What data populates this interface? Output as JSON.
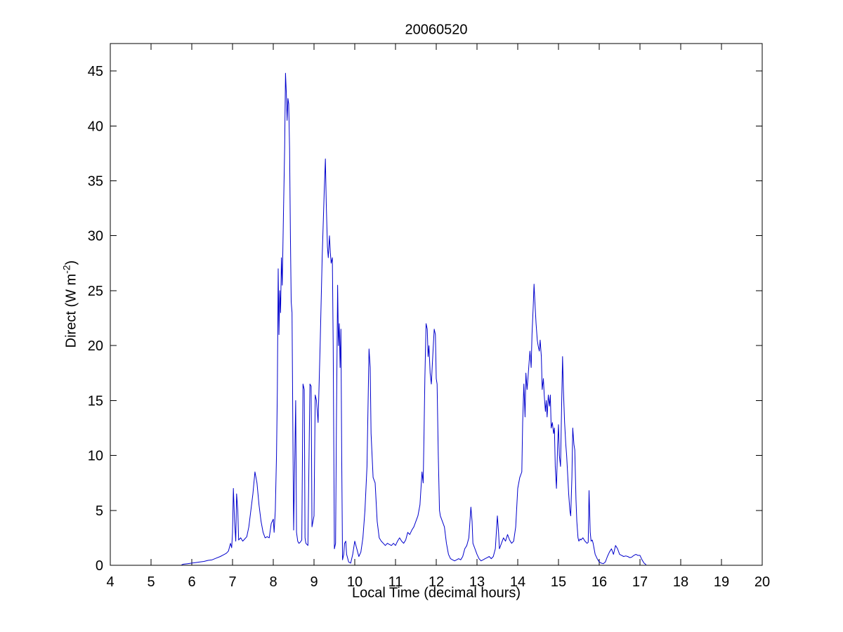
{
  "chart_data": {
    "type": "line",
    "title": "20060520",
    "xlabel": "Local Time (decimal hours)",
    "ylabel": "Direct (W m⁻²)",
    "ylabel_base": "Direct (W m",
    "ylabel_sup": "-2",
    "ylabel_close": ")",
    "xlim": [
      4,
      20
    ],
    "ylim": [
      0,
      47.5
    ],
    "x_ticks": [
      4,
      5,
      6,
      7,
      8,
      9,
      10,
      11,
      12,
      13,
      14,
      15,
      16,
      17,
      18,
      19,
      20
    ],
    "y_ticks": [
      0,
      5,
      10,
      15,
      20,
      25,
      30,
      35,
      40,
      45
    ],
    "grid": false,
    "line_color": "#0000CC",
    "axis_color": "#000000",
    "points": [
      [
        5.75,
        0.05
      ],
      [
        5.8,
        0.1
      ],
      [
        5.9,
        0.15
      ],
      [
        6.0,
        0.2
      ],
      [
        6.1,
        0.25
      ],
      [
        6.2,
        0.3
      ],
      [
        6.3,
        0.35
      ],
      [
        6.4,
        0.45
      ],
      [
        6.5,
        0.5
      ],
      [
        6.6,
        0.65
      ],
      [
        6.7,
        0.8
      ],
      [
        6.75,
        0.9
      ],
      [
        6.8,
        1.0
      ],
      [
        6.85,
        1.1
      ],
      [
        6.9,
        1.3
      ],
      [
        6.95,
        2.0
      ],
      [
        6.98,
        1.6
      ],
      [
        7.0,
        3.0
      ],
      [
        7.02,
        7.0
      ],
      [
        7.05,
        4.0
      ],
      [
        7.08,
        2.2
      ],
      [
        7.1,
        6.5
      ],
      [
        7.13,
        5.0
      ],
      [
        7.15,
        2.3
      ],
      [
        7.2,
        2.5
      ],
      [
        7.25,
        2.2
      ],
      [
        7.3,
        2.4
      ],
      [
        7.35,
        2.6
      ],
      [
        7.4,
        3.5
      ],
      [
        7.45,
        5.0
      ],
      [
        7.5,
        6.5
      ],
      [
        7.55,
        8.5
      ],
      [
        7.6,
        7.5
      ],
      [
        7.65,
        5.5
      ],
      [
        7.7,
        4.0
      ],
      [
        7.75,
        3.0
      ],
      [
        7.8,
        2.5
      ],
      [
        7.85,
        2.6
      ],
      [
        7.9,
        2.5
      ],
      [
        7.95,
        3.8
      ],
      [
        8.0,
        4.2
      ],
      [
        8.02,
        3.0
      ],
      [
        8.05,
        5.0
      ],
      [
        8.08,
        10.0
      ],
      [
        8.1,
        16.0
      ],
      [
        8.12,
        27.0
      ],
      [
        8.14,
        21.0
      ],
      [
        8.16,
        25.0
      ],
      [
        8.18,
        23.0
      ],
      [
        8.2,
        28.0
      ],
      [
        8.22,
        25.5
      ],
      [
        8.25,
        32.0
      ],
      [
        8.28,
        38.0
      ],
      [
        8.3,
        44.8
      ],
      [
        8.32,
        43.0
      ],
      [
        8.34,
        40.5
      ],
      [
        8.36,
        42.5
      ],
      [
        8.38,
        42.0
      ],
      [
        8.4,
        38.0
      ],
      [
        8.42,
        30.0
      ],
      [
        8.44,
        24.0
      ],
      [
        8.46,
        23.0
      ],
      [
        8.48,
        13.0
      ],
      [
        8.5,
        3.2
      ],
      [
        8.52,
        8.0
      ],
      [
        8.55,
        15.0
      ],
      [
        8.57,
        3.0
      ],
      [
        8.6,
        2.2
      ],
      [
        8.63,
        2.0
      ],
      [
        8.66,
        2.1
      ],
      [
        8.7,
        2.3
      ],
      [
        8.73,
        16.5
      ],
      [
        8.76,
        16.0
      ],
      [
        8.78,
        2.5
      ],
      [
        8.8,
        2.0
      ],
      [
        8.85,
        1.8
      ],
      [
        8.9,
        16.5
      ],
      [
        8.93,
        16.3
      ],
      [
        8.95,
        3.5
      ],
      [
        9.0,
        4.5
      ],
      [
        9.03,
        15.5
      ],
      [
        9.06,
        15.0
      ],
      [
        9.1,
        13.0
      ],
      [
        9.15,
        20.0
      ],
      [
        9.2,
        28.0
      ],
      [
        9.25,
        34.0
      ],
      [
        9.28,
        37.0
      ],
      [
        9.3,
        33.0
      ],
      [
        9.33,
        29.0
      ],
      [
        9.35,
        28.0
      ],
      [
        9.38,
        30.0
      ],
      [
        9.4,
        28.5
      ],
      [
        9.42,
        27.5
      ],
      [
        9.45,
        28.0
      ],
      [
        9.47,
        20.0
      ],
      [
        9.5,
        1.5
      ],
      [
        9.53,
        2.0
      ],
      [
        9.55,
        13.0
      ],
      [
        9.58,
        25.5
      ],
      [
        9.6,
        20.0
      ],
      [
        9.62,
        22.0
      ],
      [
        9.64,
        18.0
      ],
      [
        9.66,
        21.5
      ],
      [
        9.68,
        10.0
      ],
      [
        9.7,
        0.5
      ],
      [
        9.73,
        1.0
      ],
      [
        9.75,
        2.0
      ],
      [
        9.78,
        2.2
      ],
      [
        9.8,
        1.0
      ],
      [
        9.85,
        0.3
      ],
      [
        9.9,
        0.2
      ],
      [
        9.95,
        1.0
      ],
      [
        10.0,
        2.2
      ],
      [
        10.05,
        1.5
      ],
      [
        10.1,
        0.8
      ],
      [
        10.15,
        1.2
      ],
      [
        10.2,
        2.5
      ],
      [
        10.25,
        5.0
      ],
      [
        10.3,
        9.0
      ],
      [
        10.35,
        19.7
      ],
      [
        10.38,
        18.0
      ],
      [
        10.4,
        12.0
      ],
      [
        10.45,
        8.0
      ],
      [
        10.5,
        7.5
      ],
      [
        10.55,
        4.0
      ],
      [
        10.6,
        2.5
      ],
      [
        10.65,
        2.2
      ],
      [
        10.7,
        2.0
      ],
      [
        10.75,
        1.8
      ],
      [
        10.8,
        2.0
      ],
      [
        10.85,
        1.9
      ],
      [
        10.9,
        1.8
      ],
      [
        10.95,
        2.0
      ],
      [
        11.0,
        1.8
      ],
      [
        11.05,
        2.2
      ],
      [
        11.1,
        2.5
      ],
      [
        11.15,
        2.2
      ],
      [
        11.2,
        2.0
      ],
      [
        11.25,
        2.3
      ],
      [
        11.3,
        3.0
      ],
      [
        11.35,
        2.8
      ],
      [
        11.4,
        3.2
      ],
      [
        11.45,
        3.5
      ],
      [
        11.5,
        4.0
      ],
      [
        11.55,
        4.5
      ],
      [
        11.6,
        5.5
      ],
      [
        11.65,
        8.5
      ],
      [
        11.68,
        7.5
      ],
      [
        11.7,
        12.0
      ],
      [
        11.72,
        17.0
      ],
      [
        11.75,
        22.0
      ],
      [
        11.78,
        21.5
      ],
      [
        11.8,
        19.0
      ],
      [
        11.82,
        20.0
      ],
      [
        11.85,
        17.5
      ],
      [
        11.88,
        16.5
      ],
      [
        11.9,
        18.0
      ],
      [
        11.92,
        19.5
      ],
      [
        11.95,
        21.5
      ],
      [
        11.98,
        21.0
      ],
      [
        12.0,
        17.0
      ],
      [
        12.02,
        16.5
      ],
      [
        12.05,
        10.0
      ],
      [
        12.08,
        5.0
      ],
      [
        12.1,
        4.5
      ],
      [
        12.15,
        4.0
      ],
      [
        12.2,
        3.5
      ],
      [
        12.25,
        2.0
      ],
      [
        12.3,
        1.0
      ],
      [
        12.35,
        0.6
      ],
      [
        12.4,
        0.5
      ],
      [
        12.45,
        0.4
      ],
      [
        12.5,
        0.5
      ],
      [
        12.55,
        0.6
      ],
      [
        12.6,
        0.5
      ],
      [
        12.65,
        0.8
      ],
      [
        12.7,
        1.5
      ],
      [
        12.75,
        1.8
      ],
      [
        12.8,
        2.5
      ],
      [
        12.85,
        5.3
      ],
      [
        12.88,
        4.0
      ],
      [
        12.9,
        2.0
      ],
      [
        12.95,
        1.5
      ],
      [
        13.0,
        1.0
      ],
      [
        13.05,
        0.6
      ],
      [
        13.1,
        0.4
      ],
      [
        13.15,
        0.5
      ],
      [
        13.2,
        0.6
      ],
      [
        13.25,
        0.7
      ],
      [
        13.3,
        0.8
      ],
      [
        13.35,
        0.6
      ],
      [
        13.4,
        0.8
      ],
      [
        13.45,
        1.5
      ],
      [
        13.5,
        4.5
      ],
      [
        13.53,
        3.0
      ],
      [
        13.55,
        1.5
      ],
      [
        13.6,
        2.0
      ],
      [
        13.65,
        2.5
      ],
      [
        13.7,
        2.2
      ],
      [
        13.75,
        2.8
      ],
      [
        13.8,
        2.3
      ],
      [
        13.85,
        2.0
      ],
      [
        13.9,
        2.2
      ],
      [
        13.95,
        3.5
      ],
      [
        14.0,
        7.0
      ],
      [
        14.05,
        8.0
      ],
      [
        14.1,
        8.5
      ],
      [
        14.12,
        13.0
      ],
      [
        14.15,
        16.5
      ],
      [
        14.18,
        13.5
      ],
      [
        14.2,
        17.5
      ],
      [
        14.23,
        16.0
      ],
      [
        14.25,
        17.0
      ],
      [
        14.28,
        18.5
      ],
      [
        14.3,
        19.5
      ],
      [
        14.33,
        18.0
      ],
      [
        14.35,
        21.0
      ],
      [
        14.38,
        23.5
      ],
      [
        14.4,
        25.6
      ],
      [
        14.42,
        24.0
      ],
      [
        14.45,
        22.0
      ],
      [
        14.48,
        20.5
      ],
      [
        14.5,
        20.0
      ],
      [
        14.53,
        19.5
      ],
      [
        14.55,
        20.5
      ],
      [
        14.58,
        19.0
      ],
      [
        14.6,
        16.0
      ],
      [
        14.63,
        17.0
      ],
      [
        14.65,
        15.5
      ],
      [
        14.68,
        14.0
      ],
      [
        14.7,
        15.0
      ],
      [
        14.72,
        13.5
      ],
      [
        14.75,
        15.5
      ],
      [
        14.78,
        14.5
      ],
      [
        14.8,
        15.5
      ],
      [
        14.82,
        12.5
      ],
      [
        14.85,
        13.0
      ],
      [
        14.88,
        12.0
      ],
      [
        14.9,
        12.5
      ],
      [
        14.92,
        9.0
      ],
      [
        14.95,
        7.0
      ],
      [
        14.98,
        11.0
      ],
      [
        15.0,
        12.8
      ],
      [
        15.02,
        10.0
      ],
      [
        15.05,
        9.0
      ],
      [
        15.08,
        15.0
      ],
      [
        15.1,
        19.0
      ],
      [
        15.12,
        16.0
      ],
      [
        15.15,
        13.0
      ],
      [
        15.18,
        11.0
      ],
      [
        15.2,
        10.0
      ],
      [
        15.23,
        8.0
      ],
      [
        15.25,
        6.5
      ],
      [
        15.28,
        5.0
      ],
      [
        15.3,
        4.5
      ],
      [
        15.33,
        8.0
      ],
      [
        15.35,
        12.5
      ],
      [
        15.38,
        11.0
      ],
      [
        15.4,
        10.5
      ],
      [
        15.43,
        6.0
      ],
      [
        15.45,
        4.0
      ],
      [
        15.48,
        2.5
      ],
      [
        15.5,
        2.2
      ],
      [
        15.53,
        2.4
      ],
      [
        15.55,
        2.3
      ],
      [
        15.6,
        2.5
      ],
      [
        15.65,
        2.2
      ],
      [
        15.7,
        2.0
      ],
      [
        15.73,
        2.1
      ],
      [
        15.75,
        6.8
      ],
      [
        15.78,
        3.0
      ],
      [
        15.8,
        2.2
      ],
      [
        15.83,
        2.3
      ],
      [
        15.85,
        2.0
      ],
      [
        15.9,
        1.0
      ],
      [
        15.95,
        0.6
      ],
      [
        16.0,
        0.3
      ],
      [
        16.05,
        0.2
      ],
      [
        16.1,
        0.15
      ],
      [
        16.15,
        0.3
      ],
      [
        16.2,
        0.8
      ],
      [
        16.25,
        1.2
      ],
      [
        16.3,
        1.5
      ],
      [
        16.35,
        1.0
      ],
      [
        16.4,
        1.8
      ],
      [
        16.45,
        1.5
      ],
      [
        16.5,
        1.0
      ],
      [
        16.55,
        0.9
      ],
      [
        16.6,
        0.8
      ],
      [
        16.65,
        0.85
      ],
      [
        16.7,
        0.8
      ],
      [
        16.75,
        0.7
      ],
      [
        16.8,
        0.75
      ],
      [
        16.85,
        0.9
      ],
      [
        16.9,
        1.0
      ],
      [
        16.95,
        0.9
      ],
      [
        17.0,
        0.9
      ],
      [
        17.05,
        0.5
      ],
      [
        17.1,
        0.2
      ],
      [
        17.15,
        0.05
      ]
    ]
  }
}
